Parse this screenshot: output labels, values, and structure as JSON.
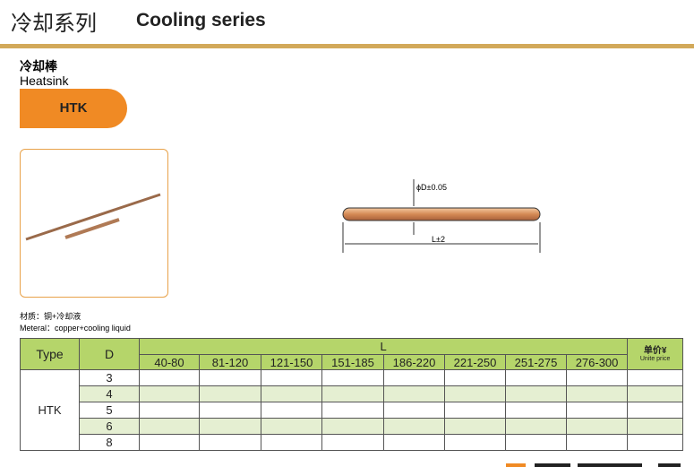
{
  "header": {
    "title_cn": "冷却系列",
    "title_en": "Cooling series"
  },
  "product": {
    "name_cn": "冷却棒",
    "name_en": "Heatsink",
    "code": "HTK"
  },
  "drawing": {
    "diameter_label": "ϕD±0.05",
    "length_label": "L±2"
  },
  "material": {
    "cn": "材质：铜+冷却液",
    "en": "Meteral：copper+cooling liquid"
  },
  "table": {
    "headers": {
      "type": "Type",
      "d": "D",
      "l": "L",
      "price_cn": "单价¥",
      "price_en": "Unite price"
    },
    "l_ranges": [
      "40-80",
      "81-120",
      "121-150",
      "151-185",
      "186-220",
      "221-250",
      "251-275",
      "276-300"
    ],
    "type_value": "HTK",
    "d_values": [
      "3",
      "4",
      "5",
      "6",
      "8"
    ]
  }
}
